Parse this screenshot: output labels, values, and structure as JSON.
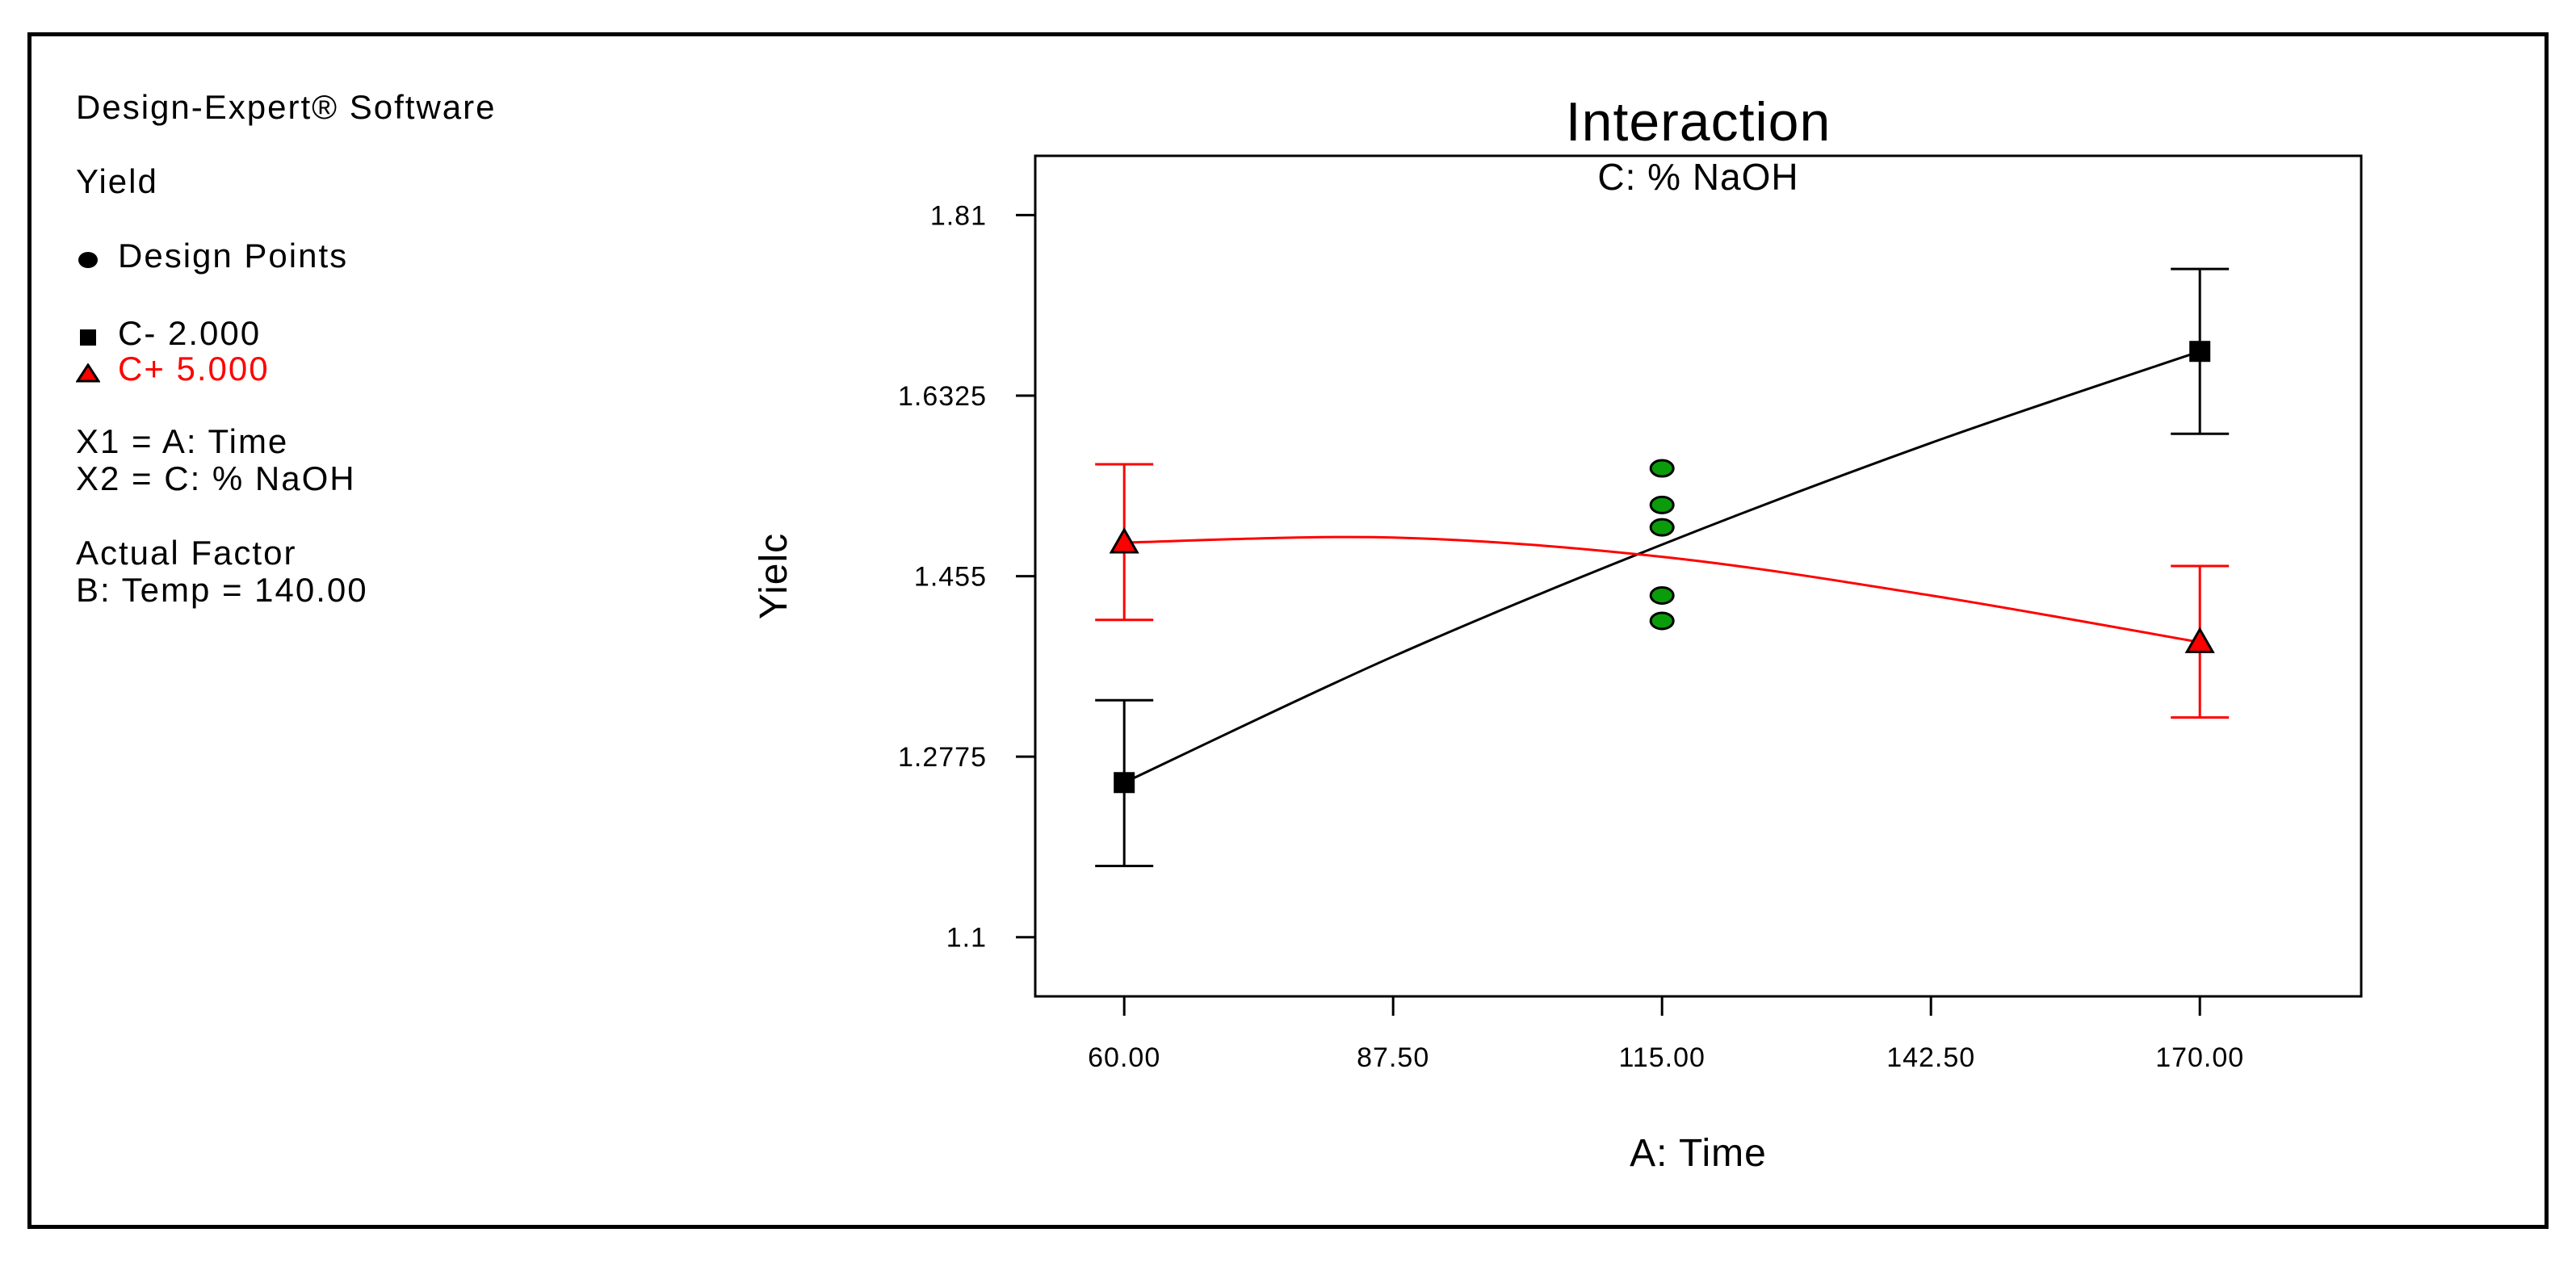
{
  "legend": {
    "software": "Design-Expert® Software",
    "response": "Yield",
    "design_points_label": "Design Points",
    "series_low_label": "C- 2.000",
    "series_high_label": "C+ 5.000",
    "x1_label": "X1 = A: Time",
    "x2_label": "X2 = C: % NaOH",
    "actual_factor_heading": "Actual Factor",
    "actual_factor_value": "B: Temp = 140.00"
  },
  "colors": {
    "low_series": "#000000",
    "high_series": "#ff0000",
    "design_points": "#0a9c0a",
    "axis": "#000000"
  },
  "chart_data": {
    "type": "line",
    "title": "Interaction",
    "subtitle": "C: % NaOH",
    "xlabel": "A: Time",
    "ylabel": "Yielc",
    "xlim": [
      50.9,
      186.5
    ],
    "ylim": [
      1.0418,
      1.8683
    ],
    "x_ticks": [
      60,
      87.5,
      115,
      142.5,
      170
    ],
    "x_tick_labels": [
      "60.00",
      "87.50",
      "115.00",
      "142.50",
      "170.00"
    ],
    "y_ticks": [
      1.1,
      1.2775,
      1.455,
      1.6325,
      1.81
    ],
    "y_tick_labels": [
      "1.1",
      "1.2775",
      "1.455",
      "1.6325",
      "1.81"
    ],
    "grid": false,
    "series": [
      {
        "name": "C- 2.000",
        "marker": "square",
        "x": [
          60,
          170
        ],
        "y": [
          1.252,
          1.676
        ],
        "error_low": [
          1.17,
          1.595
        ],
        "error_high": [
          1.333,
          1.757
        ],
        "curve_x": [
          60,
          87.5,
          115,
          142.5,
          170
        ],
        "curve_y": [
          1.252,
          1.376,
          1.486,
          1.586,
          1.676
        ]
      },
      {
        "name": "C+ 5.000",
        "marker": "triangle",
        "x": [
          60,
          170
        ],
        "y": [
          1.488,
          1.39
        ],
        "error_low": [
          1.412,
          1.316
        ],
        "error_high": [
          1.565,
          1.465
        ],
        "curve_x": [
          60,
          87.5,
          115,
          142.5,
          170
        ],
        "curve_y": [
          1.488,
          1.493,
          1.474,
          1.436,
          1.39
        ]
      }
    ],
    "design_points": {
      "x": [
        115,
        115,
        115,
        115,
        115
      ],
      "y": [
        1.561,
        1.525,
        1.503,
        1.436,
        1.411
      ]
    }
  }
}
